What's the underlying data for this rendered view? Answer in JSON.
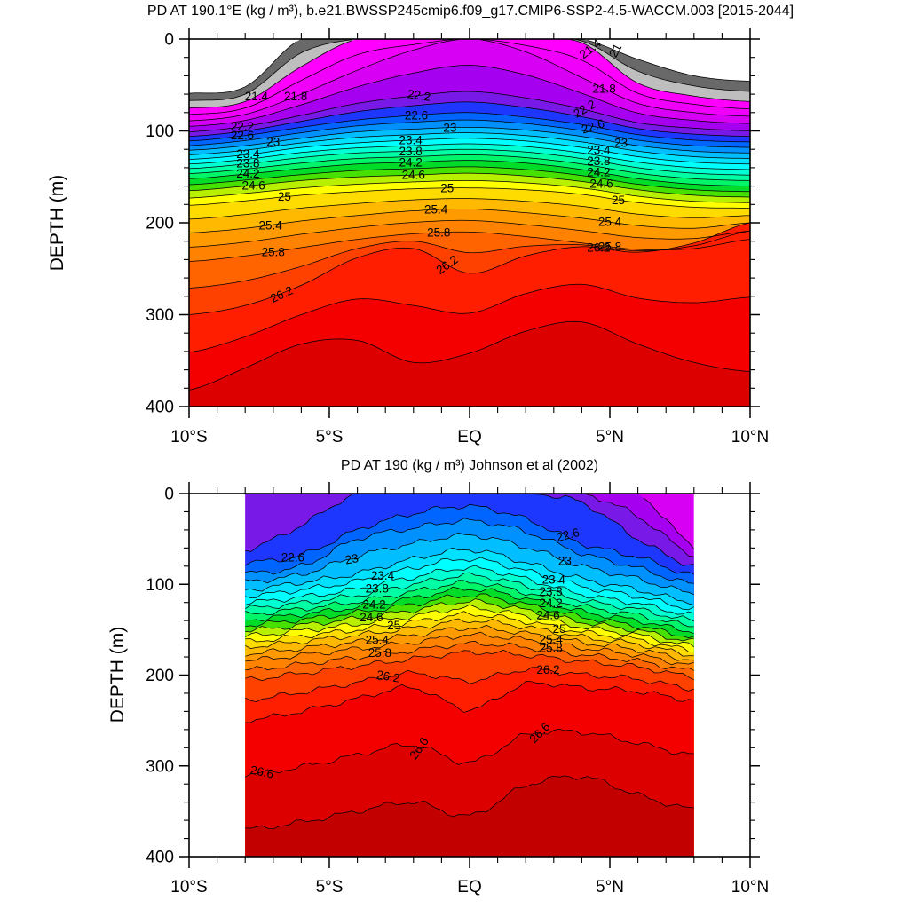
{
  "figure": {
    "background": "#FFFFFF"
  },
  "palette": {
    "min_level": 21.0,
    "step": 0.2,
    "band_colors": [
      "#FFFFFF",
      "#696969",
      "#BEBEBE",
      "#FF00FF",
      "#F000FA",
      "#D700F5",
      "#A500F0",
      "#7819E8",
      "#1E37FF",
      "#0064FF",
      "#0091FF",
      "#00BEFF",
      "#00E1FF",
      "#00FFFF",
      "#00FFD2",
      "#00FFA5",
      "#00F569",
      "#00DC28",
      "#46E100",
      "#B9F000",
      "#FFFF00",
      "#FFDC00",
      "#FFB900",
      "#FF9B00",
      "#FF8200",
      "#FF6400",
      "#FF4100",
      "#FF1E00",
      "#F50000",
      "#DC0000",
      "#C30000"
    ]
  },
  "chart_data": [
    {
      "type": "contour",
      "title": "PD AT 190.1°E (kg / m³), b.e21.BWSSP245cmip6.f09_g17.CMIP6-SSP2-4.5-WACCM.003 [2015-2044]",
      "ylabel": "DEPTH (m)",
      "x_ticks": {
        "labels": [
          "10°S",
          "5°S",
          "EQ",
          "5°N",
          "10°N"
        ],
        "values": [
          -10,
          -5,
          0,
          5,
          10
        ],
        "minor_step_deg": 1
      },
      "y_ticks": {
        "labels": [
          "0",
          "100",
          "200",
          "300",
          "400"
        ],
        "values": [
          0,
          100,
          200,
          300,
          400
        ],
        "minor_step_m": 20
      },
      "xlim_deg_lat": [
        -10,
        10
      ],
      "ylim_depth_m": [
        0,
        400
      ],
      "data_lat_range": [
        -10,
        10
      ],
      "contour_interval": 0.2,
      "noisy": false,
      "lats": [
        -10,
        -8,
        -6,
        -4,
        -2,
        0,
        2,
        4,
        6,
        8,
        10
      ],
      "isopycnals": [
        {
          "level": 21.0,
          "depth_m": [
            59,
            52,
            0,
            0,
            0,
            0,
            0,
            0,
            22,
            40,
            46
          ]
        },
        {
          "level": 21.4,
          "depth_m": [
            75,
            68,
            30,
            0,
            0,
            0,
            0,
            4,
            48,
            62,
            68
          ]
        },
        {
          "level": 21.8,
          "depth_m": [
            89,
            82,
            60,
            34,
            12,
            0,
            14,
            42,
            70,
            80,
            84
          ]
        },
        {
          "level": 22.2,
          "depth_m": [
            101,
            95,
            83,
            70,
            62,
            57,
            64,
            76,
            91,
            97,
            100
          ]
        },
        {
          "level": 22.6,
          "depth_m": [
            111,
            105,
            96,
            88,
            83,
            80,
            85,
            93,
            104,
            110,
            112
          ]
        },
        {
          "level": 23.0,
          "depth_m": [
            121,
            116,
            108,
            101,
            98,
            96,
            99,
            106,
            116,
            122,
            124
          ]
        },
        {
          "level": 23.4,
          "depth_m": [
            131,
            126,
            118,
            113,
            110,
            108,
            111,
            118,
            128,
            134,
            136
          ]
        },
        {
          "level": 23.8,
          "depth_m": [
            141,
            136,
            129,
            124,
            122,
            120,
            123,
            130,
            140,
            146,
            148
          ]
        },
        {
          "level": 24.2,
          "depth_m": [
            152,
            147,
            141,
            136,
            134,
            132,
            135,
            142,
            152,
            158,
            160
          ]
        },
        {
          "level": 24.6,
          "depth_m": [
            165,
            160,
            154,
            150,
            148,
            146,
            149,
            155,
            164,
            170,
            172
          ]
        },
        {
          "level": 25.0,
          "depth_m": [
            181,
            176,
            170,
            166,
            163,
            162,
            164,
            169,
            178,
            183,
            184
          ]
        },
        {
          "level": 25.4,
          "depth_m": [
            211,
            206,
            198,
            192,
            187,
            185,
            189,
            195,
            203,
            206,
            200
          ]
        },
        {
          "level": 25.8,
          "depth_m": [
            242,
            236,
            227,
            218,
            212,
            210,
            215,
            222,
            229,
            228,
            218
          ]
        },
        {
          "level": 26.2,
          "depth_m": [
            300,
            290,
            268,
            238,
            228,
            255,
            236,
            226,
            232,
            222,
            200
          ]
        },
        {
          "level": 26.6,
          "depth_m": [
            382,
            358,
            332,
            328,
            352,
            342,
            318,
            308,
            332,
            352,
            362
          ]
        }
      ],
      "contour_labels": [
        {
          "text": "21",
          "lat": 5.2,
          "level": 21.0,
          "rot": -62
        },
        {
          "text": "21.4",
          "lat": -7.6,
          "level": 21.4,
          "rot": 0
        },
        {
          "text": "21.4",
          "lat": 4.3,
          "level": 21.4,
          "rot": -38
        },
        {
          "text": "21.8",
          "lat": -6.2,
          "level": 21.8,
          "rot": 0
        },
        {
          "text": "21.8",
          "lat": 4.8,
          "level": 21.8,
          "rot": 0
        },
        {
          "text": "22.2",
          "lat": -8.1,
          "level": 22.2,
          "rot": 0
        },
        {
          "text": "22.2",
          "lat": -1.8,
          "level": 22.2,
          "rot": 8
        },
        {
          "text": "22.2",
          "lat": 4.1,
          "level": 22.2,
          "rot": -30
        },
        {
          "text": "22.6",
          "lat": -8.1,
          "level": 22.6,
          "rot": 0
        },
        {
          "text": "22.6",
          "lat": -1.9,
          "level": 22.6,
          "rot": 0
        },
        {
          "text": "22.6",
          "lat": 4.4,
          "level": 22.6,
          "rot": -18
        },
        {
          "text": "23",
          "lat": -7.0,
          "level": 23.0,
          "rot": 0
        },
        {
          "text": "23",
          "lat": -0.7,
          "level": 23.0,
          "rot": 0
        },
        {
          "text": "23",
          "lat": 5.4,
          "level": 23.0,
          "rot": 0
        },
        {
          "text": "23.4",
          "lat": -7.9,
          "level": 23.4,
          "rot": 0
        },
        {
          "text": "23.4",
          "lat": -2.1,
          "level": 23.4,
          "rot": 0
        },
        {
          "text": "23.4",
          "lat": 4.6,
          "level": 23.4,
          "rot": 0
        },
        {
          "text": "23.8",
          "lat": -7.9,
          "level": 23.8,
          "rot": 0
        },
        {
          "text": "23.8",
          "lat": -2.1,
          "level": 23.8,
          "rot": 0
        },
        {
          "text": "23.8",
          "lat": 4.6,
          "level": 23.8,
          "rot": 0
        },
        {
          "text": "24.2",
          "lat": -7.9,
          "level": 24.2,
          "rot": 0
        },
        {
          "text": "24.2",
          "lat": -2.1,
          "level": 24.2,
          "rot": 0
        },
        {
          "text": "24.2",
          "lat": 4.6,
          "level": 24.2,
          "rot": 0
        },
        {
          "text": "24.6",
          "lat": -7.7,
          "level": 24.6,
          "rot": 0
        },
        {
          "text": "24.6",
          "lat": -2.0,
          "level": 24.6,
          "rot": 0
        },
        {
          "text": "24.6",
          "lat": 4.7,
          "level": 24.6,
          "rot": 0
        },
        {
          "text": "25",
          "lat": -6.6,
          "level": 25.0,
          "rot": 0
        },
        {
          "text": "25",
          "lat": -0.8,
          "level": 25.0,
          "rot": 0
        },
        {
          "text": "25",
          "lat": 5.3,
          "level": 25.0,
          "rot": 0
        },
        {
          "text": "25.4",
          "lat": -7.1,
          "level": 25.4,
          "rot": 0
        },
        {
          "text": "25.4",
          "lat": -1.2,
          "level": 25.4,
          "rot": 0
        },
        {
          "text": "25.4",
          "lat": 5.0,
          "level": 25.4,
          "rot": 0
        },
        {
          "text": "25.8",
          "lat": -7.0,
          "level": 25.8,
          "rot": 0
        },
        {
          "text": "25.8",
          "lat": -1.1,
          "level": 25.8,
          "rot": 0
        },
        {
          "text": "25.8",
          "lat": 5.0,
          "level": 25.8,
          "rot": 0
        },
        {
          "text": "26.2",
          "lat": -6.7,
          "level": 26.2,
          "rot": -25
        },
        {
          "text": "26.2",
          "lat": -0.8,
          "level": 26.2,
          "rot": -35
        },
        {
          "text": "26.2",
          "lat": 4.6,
          "level": 26.2,
          "rot": 0
        }
      ]
    },
    {
      "type": "contour",
      "title": "PD AT 190 (kg / m³) Johnson et al (2002)",
      "ylabel": "DEPTH (m)",
      "x_ticks": {
        "labels": [
          "10°S",
          "5°S",
          "EQ",
          "5°N",
          "10°N"
        ],
        "values": [
          -10,
          -5,
          0,
          5,
          10
        ],
        "minor_step_deg": 1
      },
      "y_ticks": {
        "labels": [
          "0",
          "100",
          "200",
          "300",
          "400"
        ],
        "values": [
          0,
          100,
          200,
          300,
          400
        ],
        "minor_step_m": 20
      },
      "xlim_deg_lat": [
        -10,
        10
      ],
      "ylim_depth_m": [
        0,
        400
      ],
      "data_lat_range": [
        -8,
        8
      ],
      "contour_interval": 0.2,
      "noisy": true,
      "lats": [
        -8,
        -6,
        -4,
        -2,
        0,
        2,
        4,
        6,
        8
      ],
      "isopycnals": [
        {
          "level": 22.0,
          "depth_m": [
            0,
            0,
            0,
            0,
            0,
            0,
            0,
            0,
            58
          ]
        },
        {
          "level": 22.2,
          "depth_m": [
            0,
            0,
            0,
            0,
            0,
            0,
            0,
            25,
            68
          ]
        },
        {
          "level": 22.4,
          "depth_m": [
            62,
            35,
            0,
            0,
            0,
            0,
            10,
            50,
            80
          ]
        },
        {
          "level": 22.6,
          "depth_m": [
            76,
            68,
            40,
            22,
            14,
            28,
            55,
            70,
            90
          ]
        },
        {
          "level": 22.8,
          "depth_m": [
            88,
            80,
            50,
            38,
            30,
            42,
            66,
            82,
            100
          ]
        },
        {
          "level": 23.2,
          "depth_m": [
            106,
            98,
            88,
            72,
            62,
            76,
            94,
            106,
            120
          ]
        },
        {
          "level": 23.6,
          "depth_m": [
            120,
            114,
            105,
            92,
            82,
            94,
            111,
            121,
            134
          ]
        },
        {
          "level": 24.0,
          "depth_m": [
            133,
            127,
            119,
            108,
            98,
            109,
            124,
            134,
            146
          ]
        },
        {
          "level": 24.4,
          "depth_m": [
            145,
            139,
            131,
            122,
            112,
            122,
            136,
            146,
            158
          ]
        },
        {
          "level": 24.8,
          "depth_m": [
            157,
            151,
            144,
            135,
            126,
            135,
            147,
            156,
            168
          ]
        },
        {
          "level": 25.2,
          "depth_m": [
            169,
            163,
            156,
            148,
            140,
            147,
            158,
            166,
            178
          ]
        },
        {
          "level": 25.6,
          "depth_m": [
            184,
            178,
            171,
            164,
            156,
            161,
            170,
            178,
            189
          ]
        },
        {
          "level": 26.0,
          "depth_m": [
            205,
            198,
            190,
            182,
            175,
            178,
            185,
            191,
            202
          ]
        },
        {
          "level": 26.4,
          "depth_m": [
            250,
            240,
            226,
            214,
            238,
            210,
            214,
            218,
            228
          ]
        },
        {
          "level": 26.8,
          "depth_m": [
            370,
            362,
            350,
            340,
            355,
            322,
            312,
            332,
            348
          ]
        }
      ],
      "contour_labels": [
        {
          "text": "22.6",
          "lat": -6.3,
          "level": 22.6,
          "rot": 0
        },
        {
          "text": "22.6",
          "lat": 3.5,
          "level": 22.6,
          "rot": -15
        },
        {
          "text": "23",
          "lat": -4.2,
          "level": 23.0,
          "rot": -10
        },
        {
          "text": "23",
          "lat": 3.4,
          "level": 23.0,
          "rot": 0
        },
        {
          "text": "23.4",
          "lat": -3.1,
          "level": 23.4,
          "rot": 0
        },
        {
          "text": "23.4",
          "lat": 3.0,
          "level": 23.4,
          "rot": 0
        },
        {
          "text": "23.8",
          "lat": -3.3,
          "level": 23.8,
          "rot": 0
        },
        {
          "text": "23.8",
          "lat": 2.9,
          "level": 23.8,
          "rot": 0
        },
        {
          "text": "24.2",
          "lat": -3.4,
          "level": 24.2,
          "rot": 0
        },
        {
          "text": "24.2",
          "lat": 2.9,
          "level": 24.2,
          "rot": 0
        },
        {
          "text": "24.6",
          "lat": -3.5,
          "level": 24.6,
          "rot": 0
        },
        {
          "text": "24.6",
          "lat": 2.8,
          "level": 24.6,
          "rot": 0
        },
        {
          "text": "25",
          "lat": -2.7,
          "level": 25.0,
          "rot": 0
        },
        {
          "text": "25",
          "lat": 3.2,
          "level": 25.0,
          "rot": 0
        },
        {
          "text": "25.4",
          "lat": -3.3,
          "level": 25.4,
          "rot": 0
        },
        {
          "text": "25.4",
          "lat": 2.9,
          "level": 25.4,
          "rot": 0
        },
        {
          "text": "25.8",
          "lat": -3.2,
          "level": 25.8,
          "rot": 0
        },
        {
          "text": "25.8",
          "lat": 2.9,
          "level": 25.8,
          "rot": 0
        },
        {
          "text": "26.2",
          "lat": -2.9,
          "level": 26.2,
          "rot": 10
        },
        {
          "text": "26.2",
          "lat": 2.8,
          "level": 26.2,
          "rot": 0
        },
        {
          "text": "26.6",
          "lat": -7.4,
          "level": 26.6,
          "rot": 12
        },
        {
          "text": "26.6",
          "lat": -1.8,
          "level": 26.6,
          "rot": -55
        },
        {
          "text": "26.6",
          "lat": 2.5,
          "level": 26.6,
          "rot": -45
        }
      ]
    }
  ]
}
